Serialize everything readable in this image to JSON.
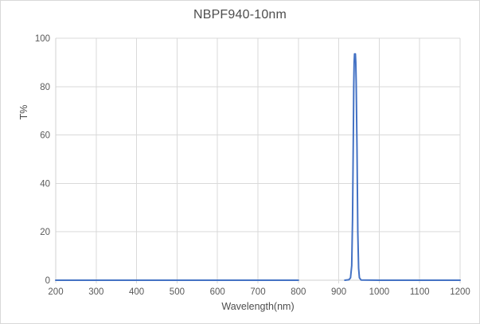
{
  "chart_data": {
    "type": "line",
    "title": "NBPF940-10nm",
    "xlabel": "Wavelength(nm)",
    "ylabel": "T%",
    "xlim": [
      200,
      1200
    ],
    "ylim": [
      0,
      100
    ],
    "x_ticks": [
      200,
      300,
      400,
      500,
      600,
      700,
      800,
      900,
      1000,
      1100,
      1200
    ],
    "y_ticks": [
      0,
      20,
      40,
      60,
      80,
      100
    ],
    "grid": true,
    "legend_position": "none",
    "series": [
      {
        "name": "NBPF940-10nm transmission",
        "segments": [
          [
            [
              200,
              0
            ],
            [
              300,
              0
            ],
            [
              400,
              0
            ],
            [
              500,
              0
            ],
            [
              600,
              0
            ],
            [
              700,
              0
            ],
            [
              800,
              0
            ]
          ],
          [
            [
              915,
              0
            ],
            [
              925,
              0.2
            ],
            [
              929,
              1
            ],
            [
              932,
              6
            ],
            [
              934,
              25
            ],
            [
              936,
              60
            ],
            [
              937,
              80
            ],
            [
              938,
              90
            ],
            [
              939,
              93.5
            ],
            [
              941,
              93.5
            ],
            [
              942,
              90
            ],
            [
              943,
              82
            ],
            [
              945,
              55
            ],
            [
              947,
              20
            ],
            [
              949,
              5
            ],
            [
              951,
              1
            ],
            [
              955,
              0.1
            ],
            [
              1000,
              0
            ],
            [
              1100,
              0
            ],
            [
              1200,
              0
            ]
          ]
        ]
      }
    ]
  },
  "colors": {
    "line": "#4472C4",
    "gridline": "#d9d9d9",
    "axis": "#d0d0d0",
    "tick_text": "#595959"
  },
  "layout_note": ""
}
